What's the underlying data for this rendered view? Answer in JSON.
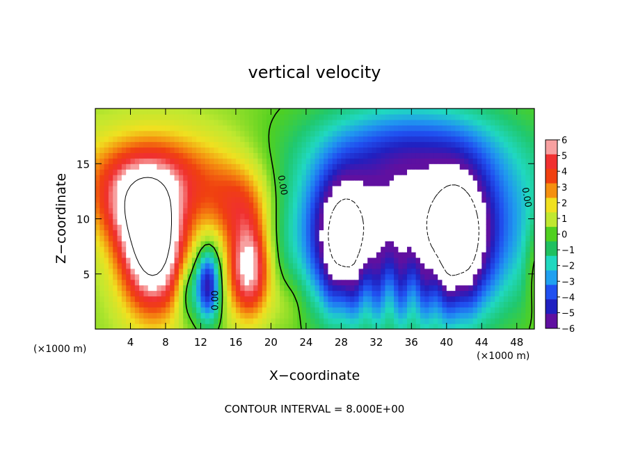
{
  "chart_data": {
    "type": "heatmap",
    "title": "vertical velocity",
    "xlabel": "X−coordinate",
    "ylabel": "Z−coordinate",
    "x_unit_left": "(×1000 m)",
    "x_unit_right": "(×1000 m)",
    "footer": "CONTOUR INTERVAL = 8.000E+00",
    "xlim": [
      0,
      50
    ],
    "ylim": [
      0,
      20
    ],
    "x_ticks": [
      4,
      8,
      12,
      16,
      20,
      24,
      28,
      32,
      36,
      40,
      44,
      48
    ],
    "x_tick_labels": [
      "4",
      "8",
      "12",
      "16",
      "20",
      "24",
      "28",
      "32",
      "36",
      "40",
      "44",
      "48"
    ],
    "y_ticks": [
      5,
      10,
      15
    ],
    "y_tick_labels": [
      "5",
      "10",
      "15"
    ],
    "colorbar": {
      "min": -6,
      "max": 6,
      "ticks": [
        6,
        5,
        4,
        3,
        2,
        1,
        0,
        -1,
        -2,
        -3,
        -4,
        -5,
        -6
      ],
      "tick_labels": [
        "6",
        "5",
        "4",
        "3",
        "2",
        "1",
        "0",
        "−1",
        "−2",
        "−3",
        "−4",
        "−5",
        "−6"
      ],
      "colors": [
        "#f7a0a0",
        "#f03030",
        "#f04010",
        "#f59010",
        "#f0e020",
        "#c0e830",
        "#50d020",
        "#20c060",
        "#20d8c0",
        "#20a0f0",
        "#2050f0",
        "#2020c0",
        "#6010a0"
      ]
    },
    "contour_labels": [
      "0.00",
      "0.00",
      "0.00"
    ],
    "features": [
      {
        "name": "updraft-west",
        "sign": "positive",
        "x": 6.5,
        "z": 7,
        "amp": 9
      },
      {
        "name": "updraft-center",
        "sign": "positive",
        "x": 17.5,
        "z": 5.5,
        "amp": 7
      },
      {
        "name": "downdraft-cell",
        "sign": "negative",
        "x": 12.8,
        "z": 4,
        "amp": 5
      },
      {
        "name": "downdraft-core-west",
        "sign": "negative",
        "x": 28,
        "z": 8,
        "amp": 8
      },
      {
        "name": "downdraft-core-east",
        "sign": "negative",
        "x": 41.5,
        "z": 8,
        "amp": 8
      }
    ]
  }
}
